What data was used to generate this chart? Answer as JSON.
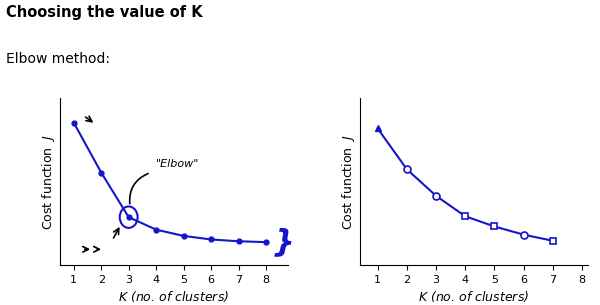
{
  "title": "Choosing the value of K",
  "subtitle": "Elbow method:",
  "bg_color": "#ffffff",
  "line_color": "#1515cc",
  "left_x": [
    1,
    2,
    3,
    4,
    5,
    6,
    7,
    8
  ],
  "left_y": [
    0.88,
    0.6,
    0.35,
    0.28,
    0.245,
    0.225,
    0.215,
    0.21
  ],
  "right_x": [
    1,
    2,
    3,
    4,
    5,
    6,
    7
  ],
  "right_y": [
    0.85,
    0.65,
    0.52,
    0.42,
    0.37,
    0.33,
    0.3
  ],
  "xlabel": "$K$ (no. of clusters)",
  "ylabel": "Cost function  $J$",
  "xlim_left": [
    0.5,
    8.8
  ],
  "ylim_left": [
    0.08,
    1.02
  ],
  "xlim_right": [
    0.4,
    8.2
  ],
  "ylim_right": [
    0.18,
    1.0
  ]
}
